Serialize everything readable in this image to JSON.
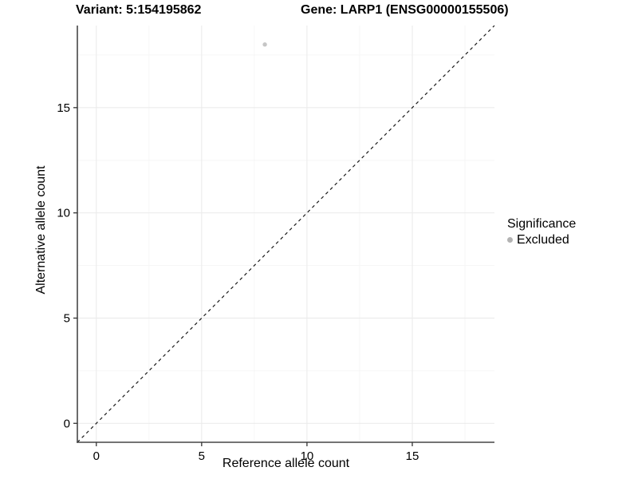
{
  "page": {
    "background": "#ffffff"
  },
  "header": {
    "variant_title": "Variant: 5:154195862",
    "gene_title": "Gene: LARP1 (ENSG00000155506)"
  },
  "chart_data": {
    "type": "scatter",
    "xlabel": "Reference allele count",
    "ylabel": "Alternative allele count",
    "xlim": [
      -0.9,
      18.9
    ],
    "ylim": [
      -0.9,
      18.9
    ],
    "x_ticks": [
      0,
      5,
      10,
      15
    ],
    "y_ticks": [
      0,
      5,
      10,
      15
    ],
    "x_minor_ticks": [
      2.5,
      7.5,
      12.5,
      17.5
    ],
    "y_minor_ticks": [
      2.5,
      7.5,
      12.5,
      17.5
    ],
    "grid": true,
    "points": [
      {
        "x": 8,
        "y": 18,
        "series": "Excluded"
      }
    ],
    "identity_line": {
      "slope": 1,
      "intercept": 0,
      "style": "dashed"
    },
    "legend": {
      "title": "Significance",
      "position": "right",
      "items": [
        {
          "label": "Excluded",
          "color": "#b3b3b3"
        }
      ]
    },
    "colors": {
      "point": "#c6c6c6",
      "grid_major": "#ebebeb",
      "grid_minor": "#f6f6f6",
      "axis_line": "#474747",
      "tick_mark": "#333333",
      "tick_label": "#000000",
      "identity_line": "#1a1a1a"
    }
  }
}
